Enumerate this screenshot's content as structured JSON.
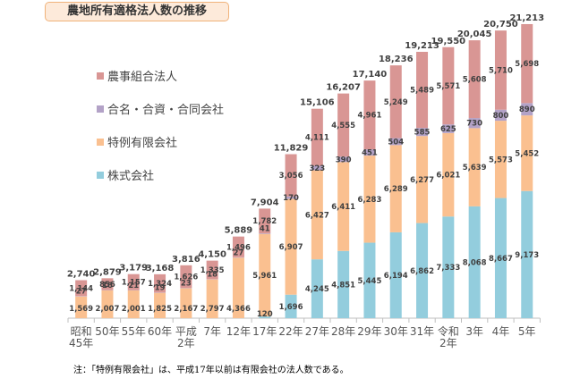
{
  "chart_data": {
    "type": "bar",
    "stacked": true,
    "title": "農地所有適格法人数の推移",
    "xlabel": "",
    "ylabel": "",
    "ylim": [
      0,
      22500
    ],
    "grid": false,
    "legend_position": "top-left",
    "categories": [
      [
        "昭和",
        "45年"
      ],
      [
        "50年"
      ],
      [
        "55年"
      ],
      [
        "60年"
      ],
      [
        "平成",
        "2年"
      ],
      [
        "7年"
      ],
      [
        "12年"
      ],
      [
        "17年"
      ],
      [
        "22年"
      ],
      [
        "27年"
      ],
      [
        "28年"
      ],
      [
        "29年"
      ],
      [
        "30年"
      ],
      [
        "31年"
      ],
      [
        "令和",
        "2年"
      ],
      [
        "3年"
      ],
      [
        "4年"
      ],
      [
        "5年"
      ]
    ],
    "series": [
      {
        "name": "株式会社",
        "color": "#93CDDD",
        "values": [
          0,
          0,
          0,
          0,
          0,
          0,
          0,
          120,
          1696,
          4245,
          4851,
          5445,
          6194,
          6862,
          7333,
          8068,
          8667,
          9173
        ],
        "labels": [
          null,
          null,
          null,
          null,
          null,
          null,
          null,
          "120",
          "1,696",
          "4,245",
          "4,851",
          "5,445",
          "6,194",
          "6,862",
          "7,333",
          "8,068",
          "8,667",
          "9,173"
        ]
      },
      {
        "name": "特例有限会社",
        "color": "#FAC090",
        "values": [
          1569,
          2007,
          2001,
          1825,
          2167,
          2797,
          4366,
          5961,
          6907,
          6427,
          6411,
          6283,
          6289,
          6277,
          6021,
          5639,
          5573,
          5452
        ],
        "labels": [
          "1,569",
          "2,007",
          "2,001",
          "1,825",
          "2,167",
          "2,797",
          "4,366",
          "5,961",
          "6,907",
          "6,427",
          "6,411",
          "6,283",
          "6,289",
          "6,277",
          "6,021",
          "5,639",
          "5,573",
          "5,452"
        ]
      },
      {
        "name": "合名・合資・合同会社",
        "color": "#B3A2C7",
        "values": [
          27,
          16,
          21,
          19,
          23,
          18,
          27,
          41,
          170,
          323,
          390,
          451,
          504,
          585,
          625,
          730,
          800,
          890
        ],
        "labels": [
          "27",
          "16",
          "21",
          "19",
          "23",
          "18",
          "27",
          "41",
          "170",
          "323",
          "390",
          "451",
          "504",
          "585",
          "625",
          "730",
          "800",
          "890"
        ]
      },
      {
        "name": "農事組合法人",
        "color": "#D99694",
        "values": [
          1144,
          856,
          1157,
          1324,
          1626,
          1335,
          1496,
          1782,
          3056,
          4111,
          4555,
          4961,
          5249,
          5489,
          5571,
          5608,
          5710,
          5698
        ],
        "labels": [
          "1,144",
          "856",
          "1,157",
          "1,324",
          "1,626",
          "1,335",
          "1,496",
          "1,782",
          "3,056",
          "4,111",
          "4,555",
          "4,961",
          "5,249",
          "5,489",
          "5,571",
          "5,608",
          "5,710",
          "5,698"
        ]
      }
    ],
    "totals": [
      2740,
      2879,
      3179,
      3168,
      3816,
      4150,
      5889,
      7904,
      11829,
      15106,
      16207,
      17140,
      18236,
      19213,
      19550,
      20045,
      20750,
      21213
    ],
    "total_labels": [
      "2,740",
      "2,879",
      "3,179",
      "3,168",
      "3,816",
      "4,150",
      "5,889",
      "7,904",
      "11,829",
      "15,106",
      "16,207",
      "17,140",
      "18,236",
      "19,213",
      "19,550",
      "20,045",
      "20,750",
      "21,213"
    ]
  },
  "legend": [
    {
      "label": "農事組合法人",
      "color": "#D99694"
    },
    {
      "label": "合名・合資・合同会社",
      "color": "#B3A2C7"
    },
    {
      "label": "特例有限会社",
      "color": "#FAC090"
    },
    {
      "label": "株式会社",
      "color": "#93CDDD"
    }
  ],
  "note": "注：「特例有限会社」は、平成17年以前は有限会社の法人数である。"
}
